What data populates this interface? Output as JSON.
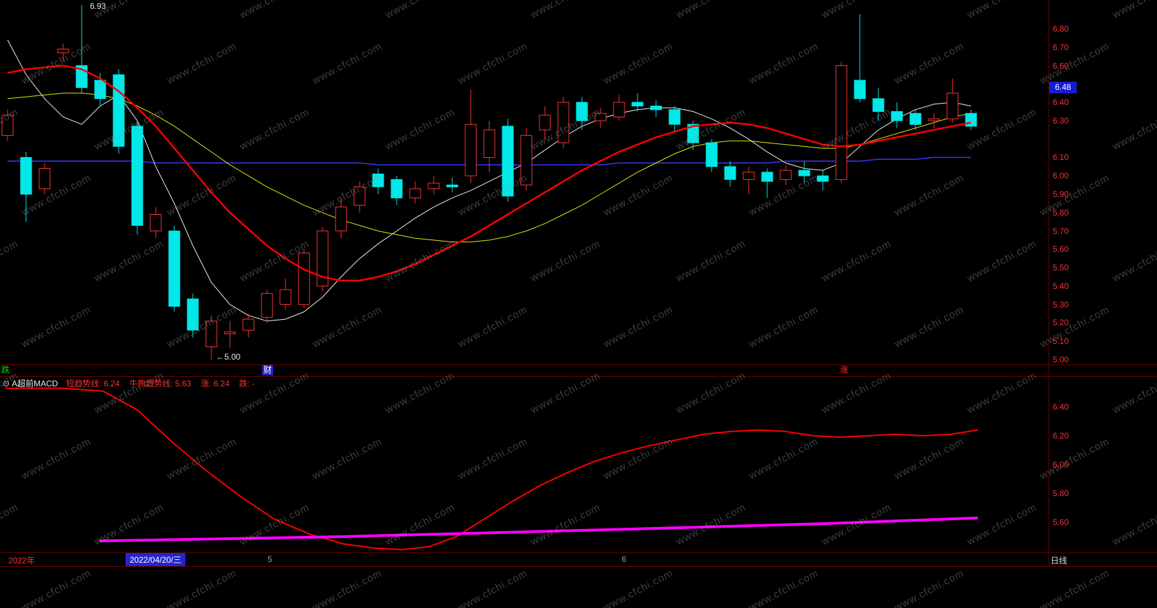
{
  "watermark": "www.cfchi.com",
  "colors": {
    "up": "#ff3232",
    "down": "#00e8e8",
    "axis_text": "#fa3232",
    "marker_bg": "#1a1ad2",
    "highlight_bg": "#2525cc",
    "signal_down_color": "#00dd00",
    "signal_up_color": "#fa3232",
    "divider": "#6b0000"
  },
  "top_panel": {
    "high_annotation": "6.93",
    "low_annotation": "←5.00",
    "last_price": "6.48",
    "signals": {
      "left": "跌",
      "mid": "财",
      "right": "涨"
    }
  },
  "indicator": {
    "icon": "⊙",
    "name": "A超前MACD",
    "items": [
      {
        "label": "短趋势线:",
        "value": "6.24",
        "color": "#fa3232"
      },
      {
        "label": "牛熊趋势线:",
        "value": "5.63",
        "color": "#fa3232"
      },
      {
        "label": "涨:",
        "value": "6.24",
        "color": "#fa3232"
      },
      {
        "label": "跌:",
        "value": "-",
        "color": "#fa3232"
      }
    ]
  },
  "bottom_bar": {
    "year": "2022年",
    "selected_date": "2022/04/20/三",
    "month_marks": [
      "5",
      "6"
    ],
    "period": "日线"
  },
  "chart_data": [
    {
      "type": "candlestick",
      "title": "",
      "ylim": [
        4.95,
        6.98
      ],
      "axis_ticks": [
        6.8,
        6.7,
        6.6,
        6.4,
        6.3,
        6.1,
        6.0,
        5.9,
        5.8,
        5.7,
        5.6,
        5.5,
        5.4,
        5.3,
        5.2,
        5.1,
        5.0
      ],
      "last_price": 6.48,
      "high_point": {
        "index": 5,
        "price": 6.93
      },
      "low_point": {
        "index": 12,
        "price": 5.0
      },
      "candles_ohlc": [
        [
          6.22,
          6.36,
          6.19,
          6.33
        ],
        [
          6.1,
          6.13,
          5.75,
          5.9
        ],
        [
          5.93,
          6.07,
          5.9,
          6.04
        ],
        [
          6.67,
          6.72,
          6.62,
          6.69
        ],
        [
          6.6,
          6.93,
          6.45,
          6.48
        ],
        [
          6.52,
          6.56,
          6.38,
          6.42
        ],
        [
          6.55,
          6.58,
          6.12,
          6.16
        ],
        [
          6.27,
          6.3,
          5.68,
          5.73
        ],
        [
          5.7,
          5.83,
          5.66,
          5.79
        ],
        [
          5.7,
          5.73,
          5.26,
          5.29
        ],
        [
          5.33,
          5.36,
          5.12,
          5.16
        ],
        [
          5.07,
          5.24,
          5.0,
          5.21
        ],
        [
          5.14,
          5.21,
          5.06,
          5.15
        ],
        [
          5.16,
          5.25,
          5.12,
          5.22
        ],
        [
          5.23,
          5.38,
          5.2,
          5.36
        ],
        [
          5.3,
          5.44,
          5.27,
          5.38
        ],
        [
          5.3,
          5.6,
          5.28,
          5.58
        ],
        [
          5.4,
          5.72,
          5.37,
          5.7
        ],
        [
          5.7,
          5.88,
          5.66,
          5.83
        ],
        [
          5.84,
          5.97,
          5.8,
          5.94
        ],
        [
          6.01,
          6.04,
          5.9,
          5.94
        ],
        [
          5.98,
          6.0,
          5.84,
          5.88
        ],
        [
          5.88,
          5.97,
          5.85,
          5.93
        ],
        [
          5.93,
          6.0,
          5.9,
          5.96
        ],
        [
          5.95,
          5.99,
          5.91,
          5.94
        ],
        [
          6.0,
          6.47,
          5.96,
          6.28
        ],
        [
          6.1,
          6.3,
          6.02,
          6.25
        ],
        [
          6.27,
          6.31,
          5.86,
          5.89
        ],
        [
          5.95,
          6.26,
          5.92,
          6.22
        ],
        [
          6.25,
          6.38,
          6.2,
          6.33
        ],
        [
          6.18,
          6.43,
          6.15,
          6.4
        ],
        [
          6.4,
          6.43,
          6.25,
          6.3
        ],
        [
          6.3,
          6.37,
          6.26,
          6.34
        ],
        [
          6.32,
          6.44,
          6.3,
          6.4
        ],
        [
          6.4,
          6.45,
          6.35,
          6.38
        ],
        [
          6.38,
          6.41,
          6.32,
          6.36
        ],
        [
          6.36,
          6.38,
          6.24,
          6.28
        ],
        [
          6.28,
          6.3,
          6.14,
          6.18
        ],
        [
          6.18,
          6.2,
          6.02,
          6.05
        ],
        [
          6.05,
          6.08,
          5.94,
          5.98
        ],
        [
          5.98,
          6.05,
          5.9,
          6.02
        ],
        [
          6.02,
          6.04,
          5.88,
          5.97
        ],
        [
          5.98,
          6.06,
          5.95,
          6.03
        ],
        [
          6.03,
          6.08,
          5.96,
          6.0
        ],
        [
          6.0,
          6.03,
          5.92,
          5.97
        ],
        [
          5.98,
          6.62,
          5.96,
          6.6
        ],
        [
          6.52,
          6.88,
          6.4,
          6.42
        ],
        [
          6.42,
          6.48,
          6.3,
          6.35
        ],
        [
          6.35,
          6.4,
          6.26,
          6.3
        ],
        [
          6.34,
          6.36,
          6.25,
          6.28
        ],
        [
          6.3,
          6.34,
          6.26,
          6.31
        ],
        [
          6.31,
          6.53,
          6.29,
          6.45
        ],
        [
          6.34,
          6.36,
          6.25,
          6.27
        ]
      ],
      "overlays": [
        {
          "name": "ma-fast-white",
          "color": "#f0f0f0",
          "values": [
            6.74,
            6.55,
            6.42,
            6.32,
            6.28,
            6.38,
            6.44,
            6.3,
            6.05,
            5.85,
            5.62,
            5.42,
            5.3,
            5.24,
            5.21,
            5.22,
            5.26,
            5.34,
            5.45,
            5.55,
            5.63,
            5.7,
            5.77,
            5.83,
            5.88,
            5.92,
            5.97,
            6.02,
            6.07,
            6.14,
            6.21,
            6.27,
            6.31,
            6.34,
            6.36,
            6.37,
            6.37,
            6.35,
            6.31,
            6.26,
            6.2,
            6.13,
            6.07,
            6.04,
            6.03,
            6.07,
            6.16,
            6.25,
            6.31,
            6.36,
            6.39,
            6.4,
            6.38
          ]
        },
        {
          "name": "ma-slow-yellow",
          "color": "#e8e800",
          "values": [
            6.42,
            6.43,
            6.44,
            6.45,
            6.45,
            6.44,
            6.42,
            6.38,
            6.33,
            6.27,
            6.2,
            6.13,
            6.06,
            6.0,
            5.94,
            5.89,
            5.84,
            5.8,
            5.76,
            5.73,
            5.7,
            5.68,
            5.66,
            5.65,
            5.64,
            5.64,
            5.65,
            5.67,
            5.7,
            5.74,
            5.79,
            5.84,
            5.9,
            5.96,
            6.02,
            6.07,
            6.12,
            6.16,
            6.18,
            6.19,
            6.19,
            6.18,
            6.17,
            6.16,
            6.15,
            6.15,
            6.17,
            6.2,
            6.23,
            6.26,
            6.29,
            6.32,
            6.34
          ]
        },
        {
          "name": "trend-red",
          "color": "#ff0000",
          "values": [
            6.56,
            6.58,
            6.59,
            6.6,
            6.58,
            6.53,
            6.46,
            6.37,
            6.27,
            6.15,
            6.03,
            5.91,
            5.8,
            5.71,
            5.62,
            5.55,
            5.49,
            5.45,
            5.43,
            5.43,
            5.45,
            5.48,
            5.52,
            5.57,
            5.62,
            5.67,
            5.73,
            5.79,
            5.85,
            5.91,
            5.97,
            6.03,
            6.08,
            6.13,
            6.17,
            6.21,
            6.24,
            6.27,
            6.28,
            6.29,
            6.28,
            6.26,
            6.23,
            6.2,
            6.17,
            6.16,
            6.17,
            6.19,
            6.21,
            6.23,
            6.25,
            6.27,
            6.29
          ]
        },
        {
          "name": "baseline-blue",
          "color": "#3838ff",
          "values": [
            6.08,
            6.08,
            6.08,
            6.08,
            6.08,
            6.08,
            6.08,
            6.08,
            6.07,
            6.07,
            6.07,
            6.07,
            6.07,
            6.07,
            6.07,
            6.07,
            6.07,
            6.07,
            6.07,
            6.07,
            6.06,
            6.06,
            6.06,
            6.06,
            6.06,
            6.06,
            6.06,
            6.06,
            6.06,
            6.06,
            6.06,
            6.06,
            6.06,
            6.07,
            6.07,
            6.07,
            6.07,
            6.07,
            6.07,
            6.07,
            6.07,
            6.07,
            6.08,
            6.08,
            6.08,
            6.08,
            6.08,
            6.09,
            6.09,
            6.09,
            6.1,
            6.1,
            6.1
          ]
        }
      ]
    },
    {
      "type": "line",
      "title": "A超前MACD",
      "ylim": [
        5.35,
        6.62
      ],
      "axis_ticks": [
        6.4,
        6.2,
        6.0,
        5.8,
        5.6
      ],
      "series": [
        {
          "name": "短趋势线",
          "color": "#ff0000",
          "value": 6.24,
          "points": [
            [
              8,
              6.53
            ],
            [
              90,
              6.53
            ],
            [
              150,
              6.51
            ],
            [
              200,
              6.38
            ],
            [
              250,
              6.16
            ],
            [
              300,
              5.96
            ],
            [
              350,
              5.78
            ],
            [
              400,
              5.62
            ],
            [
              450,
              5.52
            ],
            [
              500,
              5.45
            ],
            [
              545,
              5.42
            ],
            [
              585,
              5.41
            ],
            [
              625,
              5.43
            ],
            [
              665,
              5.5
            ],
            [
              705,
              5.62
            ],
            [
              745,
              5.74
            ],
            [
              785,
              5.85
            ],
            [
              825,
              5.94
            ],
            [
              865,
              6.02
            ],
            [
              905,
              6.08
            ],
            [
              945,
              6.13
            ],
            [
              985,
              6.17
            ],
            [
              1025,
              6.21
            ],
            [
              1065,
              6.23
            ],
            [
              1105,
              6.24
            ],
            [
              1145,
              6.23
            ],
            [
              1185,
              6.2
            ],
            [
              1225,
              6.19
            ],
            [
              1265,
              6.2
            ],
            [
              1305,
              6.21
            ],
            [
              1345,
              6.2
            ],
            [
              1385,
              6.21
            ],
            [
              1425,
              6.24
            ]
          ]
        },
        {
          "name": "牛熊趋势线",
          "color": "#ff00ff",
          "value": 5.63,
          "points": [
            [
              145,
              5.47
            ],
            [
              500,
              5.5
            ],
            [
              900,
              5.55
            ],
            [
              1200,
              5.59
            ],
            [
              1425,
              5.63
            ]
          ]
        }
      ]
    }
  ]
}
